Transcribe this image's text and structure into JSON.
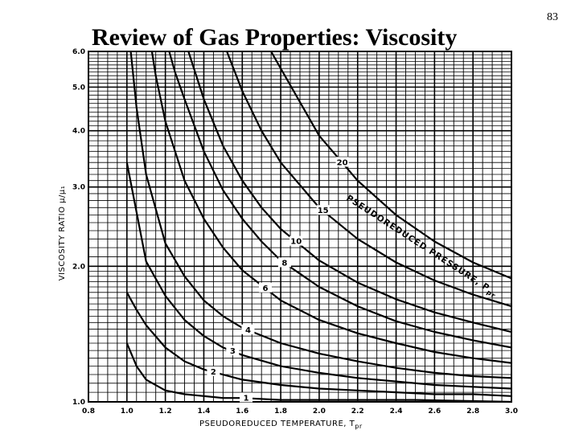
{
  "slide": {
    "title": "Review of Gas Properties: Viscosity",
    "page_number": "83"
  },
  "chart_data": {
    "type": "line",
    "title": "",
    "xlabel": "PSEUDOREDUCED TEMPERATURE, T",
    "xlabel_sub": "pr",
    "ylabel": "VISCOSITY RATIO μ/μ₁",
    "xlim": [
      0.8,
      3.0
    ],
    "ylim": [
      1.0,
      6.0
    ],
    "yscale": "log",
    "grid": true,
    "x_ticks": [
      "0.8",
      "1.0",
      "1.2",
      "1.4",
      "1.6",
      "1.8",
      "2.0",
      "2.2",
      "2.4",
      "2.6",
      "2.8",
      "3.0"
    ],
    "y_ticks": [
      {
        "value": 1.0,
        "label": "1.0"
      },
      {
        "value": 2.0,
        "label": "2.0"
      },
      {
        "value": 3.0,
        "label": "3.0"
      },
      {
        "value": 4.0,
        "label": "4.0"
      },
      {
        "value": 5.0,
        "label": "5.0"
      },
      {
        "value": 6.0,
        "label": "6.0"
      }
    ],
    "annotation": "PSEUDOREDUCED PRESSURE, P",
    "annotation_sub": "pr",
    "series": [
      {
        "name": "1",
        "x": [
          1.0,
          1.05,
          1.1,
          1.2,
          1.3,
          1.4,
          1.5,
          1.6,
          1.8,
          2.0,
          2.5,
          3.0
        ],
        "y": [
          1.35,
          1.2,
          1.12,
          1.06,
          1.04,
          1.03,
          1.02,
          1.02,
          1.01,
          1.01,
          1.01,
          1.0
        ]
      },
      {
        "name": "2",
        "x": [
          1.0,
          1.05,
          1.1,
          1.2,
          1.3,
          1.4,
          1.6,
          1.8,
          2.0,
          2.2,
          2.4,
          2.6,
          2.8,
          3.0
        ],
        "y": [
          1.75,
          1.6,
          1.48,
          1.32,
          1.23,
          1.18,
          1.12,
          1.09,
          1.07,
          1.06,
          1.05,
          1.04,
          1.04,
          1.03
        ]
      },
      {
        "name": "3",
        "x": [
          1.0,
          1.1,
          1.2,
          1.3,
          1.4,
          1.5,
          1.6,
          1.8,
          2.0,
          2.2,
          2.4,
          2.6,
          2.8,
          3.0
        ],
        "y": [
          3.4,
          2.05,
          1.72,
          1.52,
          1.4,
          1.32,
          1.27,
          1.2,
          1.16,
          1.13,
          1.11,
          1.09,
          1.08,
          1.07
        ]
      },
      {
        "name": "4",
        "x": [
          1.02,
          1.05,
          1.1,
          1.2,
          1.3,
          1.4,
          1.5,
          1.6,
          1.8,
          2.0,
          2.2,
          2.4,
          2.6,
          2.8,
          3.0
        ],
        "y": [
          6.0,
          4.5,
          3.2,
          2.25,
          1.9,
          1.68,
          1.55,
          1.46,
          1.35,
          1.28,
          1.23,
          1.19,
          1.16,
          1.14,
          1.13
        ]
      },
      {
        "name": "6",
        "x": [
          1.13,
          1.15,
          1.2,
          1.3,
          1.4,
          1.5,
          1.6,
          1.8,
          2.0,
          2.2,
          2.4,
          2.6,
          2.8,
          3.0
        ],
        "y": [
          6.0,
          5.3,
          4.2,
          3.1,
          2.55,
          2.2,
          1.96,
          1.68,
          1.52,
          1.42,
          1.35,
          1.29,
          1.25,
          1.22
        ]
      },
      {
        "name": "8",
        "x": [
          1.22,
          1.25,
          1.3,
          1.4,
          1.5,
          1.6,
          1.7,
          1.8,
          2.0,
          2.2,
          2.4,
          2.6,
          2.8,
          3.0
        ],
        "y": [
          6.0,
          5.4,
          4.7,
          3.6,
          2.95,
          2.55,
          2.27,
          2.06,
          1.8,
          1.63,
          1.51,
          1.43,
          1.37,
          1.32
        ]
      },
      {
        "name": "10",
        "x": [
          1.32,
          1.4,
          1.5,
          1.6,
          1.7,
          1.8,
          2.0,
          2.2,
          2.4,
          2.6,
          2.8,
          3.0
        ],
        "y": [
          6.0,
          4.7,
          3.7,
          3.1,
          2.7,
          2.42,
          2.06,
          1.84,
          1.69,
          1.58,
          1.5,
          1.43
        ]
      },
      {
        "name": "15",
        "x": [
          1.52,
          1.6,
          1.7,
          1.8,
          2.0,
          2.2,
          2.4,
          2.6,
          2.8,
          3.0
        ],
        "y": [
          6.0,
          4.9,
          4.0,
          3.4,
          2.7,
          2.3,
          2.04,
          1.86,
          1.73,
          1.63
        ]
      },
      {
        "name": "20",
        "x": [
          1.75,
          1.8,
          2.0,
          2.2,
          2.4,
          2.6,
          2.8,
          3.0
        ],
        "y": [
          6.0,
          5.5,
          3.9,
          3.1,
          2.6,
          2.27,
          2.04,
          1.88
        ]
      }
    ]
  }
}
